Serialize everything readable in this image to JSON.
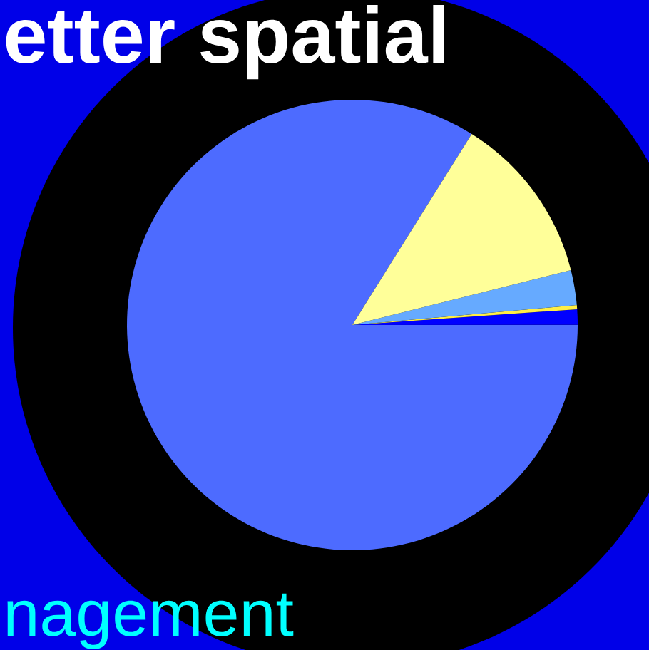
{
  "chart_data": {
    "type": "pie",
    "title": "etter spatial",
    "annotations": [
      "nagement"
    ],
    "categories": [
      null,
      null,
      null,
      null,
      null
    ],
    "values": [
      83.9,
      1.1,
      0.3,
      2.5,
      12.2
    ],
    "colors": [
      "#4d6bff",
      "#0000ff",
      "#ffee44",
      "#66aaff",
      "#ffff99"
    ]
  }
}
